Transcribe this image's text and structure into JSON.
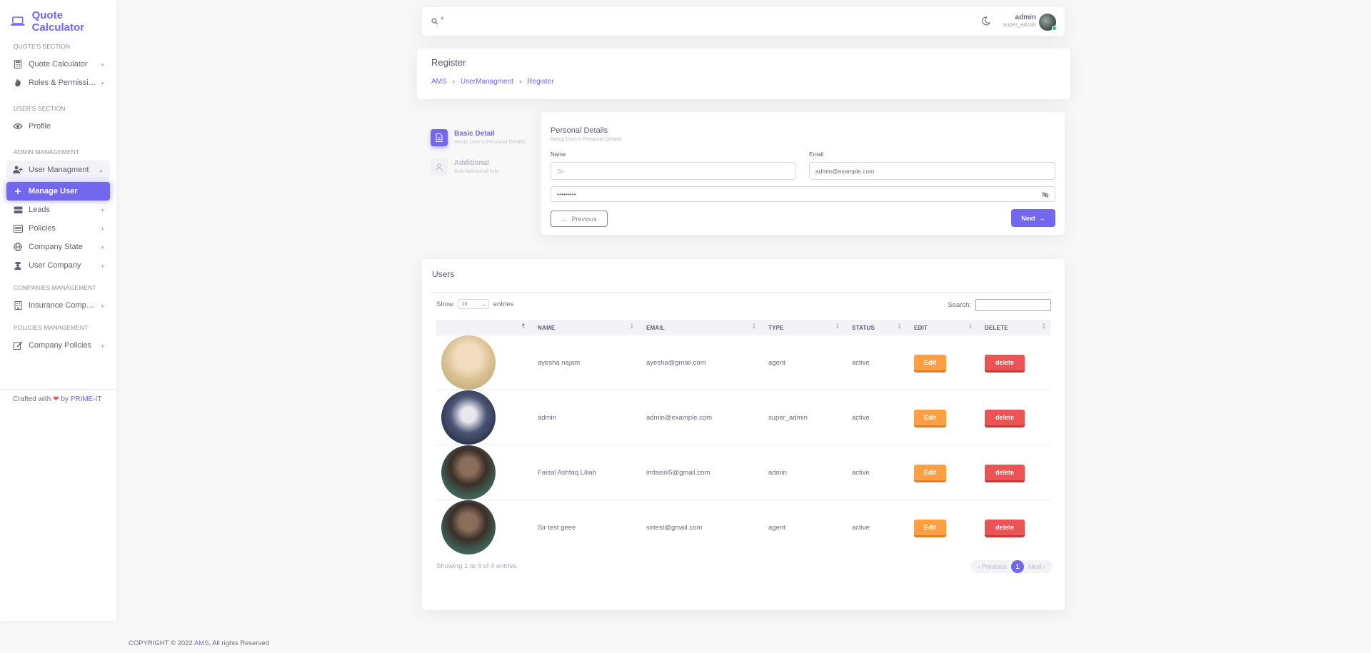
{
  "brand": {
    "name": "Quote Calculator"
  },
  "sidebar": {
    "sections": [
      {
        "title": "QUOTE'S SECTION",
        "items": [
          {
            "label": "Quote Calculator",
            "icon": "calculator-icon"
          },
          {
            "label": "Roles & Permissions",
            "icon": "hand-icon"
          }
        ]
      },
      {
        "title": "USER'S SECTION",
        "items": [
          {
            "label": "Profile",
            "icon": "eye-icon"
          }
        ]
      },
      {
        "title": "ADMIN MANAGEMENT",
        "items": [
          {
            "label": "User Managment",
            "icon": "user-plus-icon"
          },
          {
            "label": "Manage User",
            "icon": "plus-icon"
          },
          {
            "label": "Leads",
            "icon": "server-icon"
          },
          {
            "label": "Policies",
            "icon": "list-icon"
          },
          {
            "label": "Company State",
            "icon": "globe-icon"
          },
          {
            "label": "User Company",
            "icon": "user-secret-icon"
          }
        ]
      },
      {
        "title": "COMPANIES MANAGEMENT",
        "items": [
          {
            "label": "Insurance Compani...",
            "icon": "building-icon"
          }
        ]
      },
      {
        "title": "POLICIES MANAGEMENT",
        "items": [
          {
            "label": "Company Policies",
            "icon": "edit-icon"
          }
        ]
      }
    ],
    "crafted": {
      "prefix": "Crafted with",
      "by": "by",
      "brand": "PRIME-IT"
    }
  },
  "topbar": {
    "search_value": "*",
    "user_name": "admin",
    "user_role": "super_admin"
  },
  "register": {
    "title": "Register",
    "breadcrumb": [
      "AMS",
      "UserManagment",
      "Register"
    ]
  },
  "steps": [
    {
      "title": "Basic Detail",
      "subtitle": "Setup User's Personal Details"
    },
    {
      "title": "Additional",
      "subtitle": "Add Additional Info"
    }
  ],
  "personal": {
    "heading": "Personal Details",
    "subheading": "Setup User's Personal Details",
    "name_label": "Name",
    "name_placeholder": "Sir",
    "email_label": "Email",
    "email_value": "admin@example.com",
    "password_value": "•••••••••",
    "prev_label": "Previous",
    "next_label": "Next"
  },
  "users": {
    "title": "Users",
    "show_label": "Show",
    "entries_value": "10",
    "entries_label": "entries",
    "search_label": "Search:",
    "columns": [
      "",
      "NAME",
      "EMAIL",
      "TYPE",
      "STATUS",
      "EDIT",
      "DELETE"
    ],
    "rows": [
      {
        "name": "ayesha najam",
        "email": "ayesha@gmail.com",
        "type": "agent",
        "status": "active",
        "edit": "Edit",
        "delete": "delete",
        "avatar_color": "#d9c3a0"
      },
      {
        "name": "admin",
        "email": "admin@example.com",
        "type": "super_admin",
        "status": "active",
        "edit": "Edit",
        "delete": "delete",
        "avatar_color": "#3f4a6e"
      },
      {
        "name": "Faisal Ashfaq Lillah",
        "email": "imfaisiii5@gmail.com",
        "type": "admin",
        "status": "active",
        "edit": "Edit",
        "delete": "delete",
        "avatar_color": "#3d5a50"
      },
      {
        "name": "Sir test geee",
        "email": "sirtest@gmail.com",
        "type": "agent",
        "status": "active",
        "edit": "Edit",
        "delete": "delete",
        "avatar_color": "#3d5a50"
      }
    ],
    "showing": "Showing 1 to 4 of 4 entries",
    "pager": {
      "prev": "‹ Previous",
      "page": "1",
      "next": "Next ›"
    }
  },
  "footer": {
    "prefix": "COPYRIGHT © 2022",
    "brand": "AMS",
    "suffix": ", All rights Reserved"
  },
  "colors": {
    "primary": "#7367f0",
    "warning": "#ff9f43",
    "danger": "#ea5455"
  }
}
